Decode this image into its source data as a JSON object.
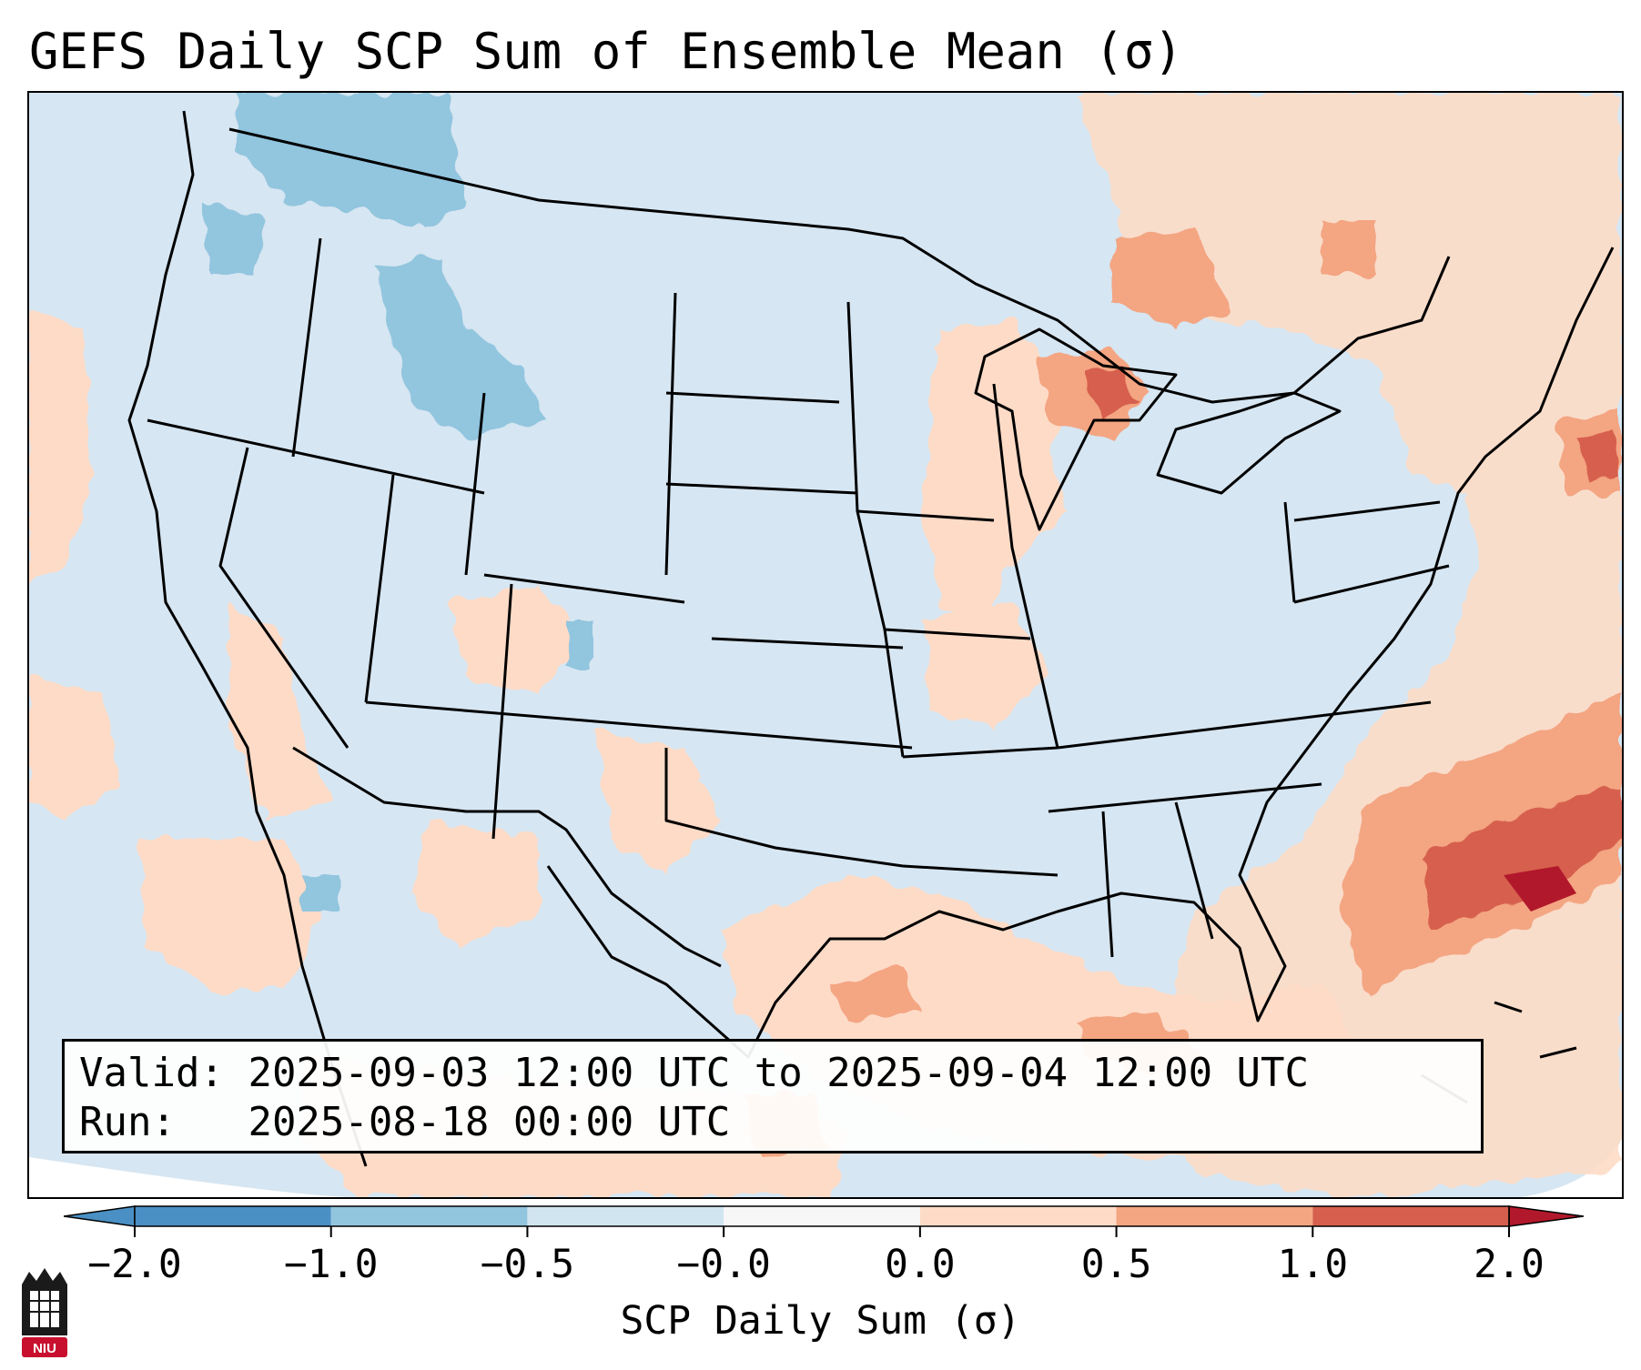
{
  "title": "GEFS Daily SCP Sum of Ensemble Mean (σ)",
  "info": {
    "valid_label": "Valid:",
    "valid_value": "2025-09-03 12:00 UTC to 2025-09-04 12:00 UTC",
    "run_label": "Run:",
    "run_value": "2025-08-18 00:00 UTC"
  },
  "colorbar": {
    "label": "SCP Daily Sum (σ)",
    "ticks": [
      "−2.0",
      "−1.0",
      "−0.5",
      "−0.0",
      "0.0",
      "0.5",
      "1.0",
      "2.0"
    ],
    "colors": [
      "#4a90c4",
      "#92c5de",
      "#d1e5f0",
      "#f7f7f7",
      "#fddbc7",
      "#f4a582",
      "#d6604d",
      "#b2182b"
    ]
  },
  "map": {
    "base_color": "#d6e6f2",
    "region": "Continental United States, Gulf of Mexico, northern Mexico, southern Canada, western Atlantic"
  },
  "logo": {
    "text": "NIU",
    "color": "#c8102e"
  }
}
